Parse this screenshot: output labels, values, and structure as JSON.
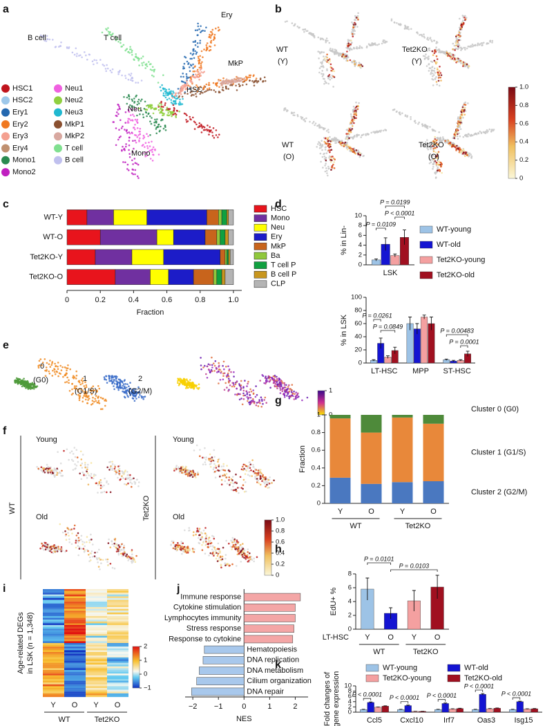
{
  "figure": {
    "panel_letters": [
      "a",
      "b",
      "c",
      "d",
      "e",
      "f",
      "g",
      "h",
      "i",
      "j",
      "k"
    ],
    "a": {
      "map_labels": [
        "B cell",
        "T cell",
        "Ery",
        "MkP",
        "HSC",
        "Neu",
        "Mono"
      ],
      "legend": [
        {
          "name": "HSC1",
          "color": "#c0141c"
        },
        {
          "name": "HSC2",
          "color": "#9ec8ea"
        },
        {
          "name": "Ery1",
          "color": "#2468b0"
        },
        {
          "name": "Ery2",
          "color": "#f07820"
        },
        {
          "name": "Ery3",
          "color": "#f4a090"
        },
        {
          "name": "Ery4",
          "color": "#c09070"
        },
        {
          "name": "Mono1",
          "color": "#2a8a50"
        },
        {
          "name": "Mono2",
          "color": "#c020c0"
        },
        {
          "name": "Neu1",
          "color": "#f060e0"
        },
        {
          "name": "Neu2",
          "color": "#90d040"
        },
        {
          "name": "Neu3",
          "color": "#20b8d0"
        },
        {
          "name": "MkP1",
          "color": "#8a5030"
        },
        {
          "name": "MkP2",
          "color": "#d8a8a0"
        },
        {
          "name": "T cell",
          "color": "#80e090"
        },
        {
          "name": "B cell",
          "color": "#c0c0ee"
        }
      ]
    },
    "b": {
      "conditions": [
        [
          "WT",
          "(Y)"
        ],
        [
          "Tet2KO",
          "(Y)"
        ],
        [
          "WT",
          "(O)"
        ],
        [
          "Tet2KO",
          "(O)"
        ]
      ],
      "colorbar_ticks": [
        {
          "value": 1,
          "label": "1.0"
        },
        0.8,
        0.6,
        0.4,
        0.2,
        0
      ]
    },
    "e": {
      "labels": [
        "0",
        "(G0)",
        "1",
        "(G1/S)",
        "2",
        "(G2/M)"
      ],
      "colorbar_ticks": [
        1,
        0
      ]
    },
    "f": {
      "genotypes": [
        "WT",
        "Tet2KO"
      ],
      "ages": [
        "Young",
        "Old",
        "Young",
        "Old"
      ],
      "colorbar_ticks": [
        {
          "value": 1,
          "label": "1.0"
        },
        0.8,
        0.6,
        0.4,
        0.2,
        0
      ]
    },
    "i": {
      "ylabel": [
        "Age-related DEGs",
        "in LSK (n = 1,348)"
      ],
      "colorbar_ticks": [
        2,
        1,
        0,
        {
          "value": -1,
          "label": "−1"
        }
      ],
      "categories": [
        "Y",
        "O",
        "Y",
        "O"
      ],
      "groups": [
        "WT",
        "Tet2KO"
      ]
    }
  },
  "chart_data": [
    {
      "type": "stacked_bar",
      "orientation": "horizontal",
      "xlabel": "Fraction",
      "categories": [
        "WT-Y",
        "WT-O",
        "Tet2KO-Y",
        "Tet2KO-O"
      ],
      "series": [
        {
          "name": "HSC",
          "color": "#e8141c",
          "values": [
            0.12,
            0.2,
            0.17,
            0.29
          ]
        },
        {
          "name": "Mono",
          "color": "#7030a0",
          "values": [
            0.16,
            0.34,
            0.22,
            0.21
          ]
        },
        {
          "name": "Neu",
          "color": "#ffff00",
          "values": [
            0.2,
            0.1,
            0.19,
            0.11
          ]
        },
        {
          "name": "Ery",
          "color": "#1c1cc8",
          "values": [
            0.36,
            0.19,
            0.34,
            0.15
          ]
        },
        {
          "name": "MkP",
          "color": "#c8641c",
          "values": [
            0.07,
            0.07,
            0.03,
            0.12
          ]
        },
        {
          "name": "Ba",
          "color": "#90c83c",
          "values": [
            0.02,
            0.02,
            0.01,
            0.02
          ]
        },
        {
          "name": "T cell P",
          "color": "#10a040",
          "values": [
            0.03,
            0.03,
            0.01,
            0.03
          ]
        },
        {
          "name": "B cell P",
          "color": "#c8961e",
          "values": [
            0.01,
            0.02,
            0.01,
            0.02
          ]
        },
        {
          "name": "CLP",
          "color": "#b4b4b4",
          "values": [
            0.03,
            0.03,
            0.02,
            0.05
          ]
        }
      ],
      "xlim": [
        0,
        1.05
      ],
      "xticks": [
        0,
        0.2,
        0.4,
        0.6,
        0.8,
        {
          "value": 1,
          "label": "1.0"
        }
      ]
    },
    {
      "type": "bar",
      "ylabel": "% in Lin-",
      "categories": [
        "LSK"
      ],
      "series": [
        {
          "name": "WT-young",
          "color": "#9dc3e6",
          "values": [
            1
          ],
          "errors": [
            0.2
          ]
        },
        {
          "name": "WT-old",
          "color": "#1414d2",
          "values": [
            4.2
          ],
          "errors": [
            1.3
          ]
        },
        {
          "name": "Tet2KO-young",
          "color": "#f4a0a0",
          "values": [
            1.9
          ],
          "errors": [
            0.3
          ]
        },
        {
          "name": "Tet2KO-old",
          "color": "#a01020",
          "values": [
            5.6
          ],
          "errors": [
            1.5
          ]
        }
      ],
      "annotations": [
        "P = 0.0109",
        "P = 0.0199",
        "P < 0.0001"
      ],
      "ylim": [
        0,
        10
      ],
      "yticks": [
        0,
        2,
        4,
        6,
        8,
        10
      ]
    },
    {
      "type": "bar",
      "ylabel": "% in LSK",
      "categories": [
        "LT-HSC",
        "MPP",
        "ST-HSC"
      ],
      "series": [
        {
          "color": "#9dc3e6",
          "values": [
            4,
            60,
            5
          ],
          "errors": [
            1,
            10,
            1
          ]
        },
        {
          "color": "#1414d2",
          "values": [
            30,
            52,
            3
          ],
          "errors": [
            8,
            8,
            1
          ]
        },
        {
          "color": "#f4a0a0",
          "values": [
            9,
            70,
            4
          ],
          "errors": [
            2,
            3,
            1
          ]
        },
        {
          "color": "#a01020",
          "values": [
            19,
            60,
            14
          ],
          "errors": [
            5,
            10,
            4
          ]
        }
      ],
      "annotations": [
        "P = 0.0261",
        "P = 0.0849",
        "P = 0.00483",
        "P = 0.0001"
      ],
      "ylim": [
        0,
        100
      ],
      "yticks": [
        0,
        20,
        40,
        60,
        80,
        100
      ]
    },
    {
      "type": "stacked_bar",
      "ylabel": "Fraction",
      "categories": [
        "Y",
        "O",
        "Y",
        "O"
      ],
      "groups": [
        "WT",
        "Tet2KO"
      ],
      "series": [
        {
          "name": "Cluster 2 (G2/M)",
          "color": "#4a78c0",
          "values": [
            0.29,
            0.22,
            0.24,
            0.25
          ]
        },
        {
          "name": "Cluster 1 (G1/S)",
          "color": "#e8883a",
          "values": [
            0.67,
            0.58,
            0.73,
            0.65
          ]
        },
        {
          "name": "Cluster 0 (G0)",
          "color": "#4e8a3a",
          "values": [
            0.04,
            0.2,
            0.03,
            0.1
          ]
        }
      ],
      "ylim": [
        0,
        1
      ],
      "yticks": [
        0,
        0.2,
        0.4,
        0.6,
        0.8,
        1
      ]
    },
    {
      "type": "bar",
      "ylabel": "EdU+ %",
      "row_label": "LT-HSC",
      "categories": [
        "Y",
        "O",
        "Y",
        "O"
      ],
      "groups": [
        "WT",
        "Tet2KO"
      ],
      "values": [
        5.8,
        2.3,
        4.1,
        6.1
      ],
      "errors": [
        1.6,
        0.8,
        1.5,
        1.7
      ],
      "colors": [
        "#9dc3e6",
        "#1414d2",
        "#f4a0a0",
        "#a01020"
      ],
      "annotations": [
        "P = 0.0101",
        "P = 0.0103"
      ],
      "ylim": [
        0,
        8
      ],
      "yticks": [
        0,
        2,
        4,
        6,
        8
      ]
    },
    {
      "type": "bar",
      "orientation": "horizontal",
      "xlabel": "NES",
      "categories": [
        "Immune response",
        "Cytokine stimulation",
        "Lymphocytes immunity",
        "Stress response",
        "Response to cytokine",
        "Hematopoiesis",
        "DNA replication",
        "DNA metabolism",
        "Cilium organization",
        "DNA repair"
      ],
      "values": [
        2.2,
        2.0,
        2.0,
        1.95,
        1.9,
        -1.55,
        -1.6,
        -1.75,
        -1.85,
        -2.05
      ],
      "positive_color": "#f4a6a6",
      "negative_color": "#a8c8ec",
      "xlim": [
        -2.3,
        2.5
      ],
      "xticks": [
        {
          "value": -2,
          "label": "−2"
        },
        {
          "value": -1,
          "label": "−1"
        },
        0,
        1,
        2
      ]
    },
    {
      "type": "bar",
      "ylabel": [
        "Fold changes of",
        "gene expression"
      ],
      "categories": [
        "Ccl5",
        "Cxcl10",
        "Irf7",
        "Oas3",
        "Isg15"
      ],
      "series": [
        {
          "name": "WT-young",
          "color": "#9dc3e6",
          "values": [
            1,
            1,
            1,
            1,
            1
          ],
          "errors": [
            0.1,
            0.1,
            0.1,
            0.1,
            0.1
          ]
        },
        {
          "name": "WT-old",
          "color": "#1414d2",
          "values": [
            3.7,
            2.5,
            3.3,
            6.8,
            4.0
          ],
          "errors": [
            0.2,
            0.2,
            0.2,
            0.3,
            0.2
          ]
        },
        {
          "name": "Tet2KO-young",
          "color": "#f4a0a0",
          "values": [
            1.9,
            0.3,
            1.2,
            1.3,
            1.2
          ],
          "errors": [
            0.1,
            0.05,
            0.1,
            0.1,
            0.1
          ]
        },
        {
          "name": "Tet2KO-old",
          "color": "#a01020",
          "values": [
            2.3,
            0.3,
            1.4,
            1.5,
            1.3
          ],
          "errors": [
            0.1,
            0.05,
            0.1,
            0.1,
            0.1
          ]
        }
      ],
      "annotations": [
        "P < 0.0001",
        "P < 0.0001",
        "P < 0.0001",
        "P < 0.0001",
        "P < 0.0001"
      ],
      "ylim": [
        0,
        10
      ],
      "yticks": [
        0,
        2,
        4,
        6,
        8,
        10
      ]
    }
  ]
}
